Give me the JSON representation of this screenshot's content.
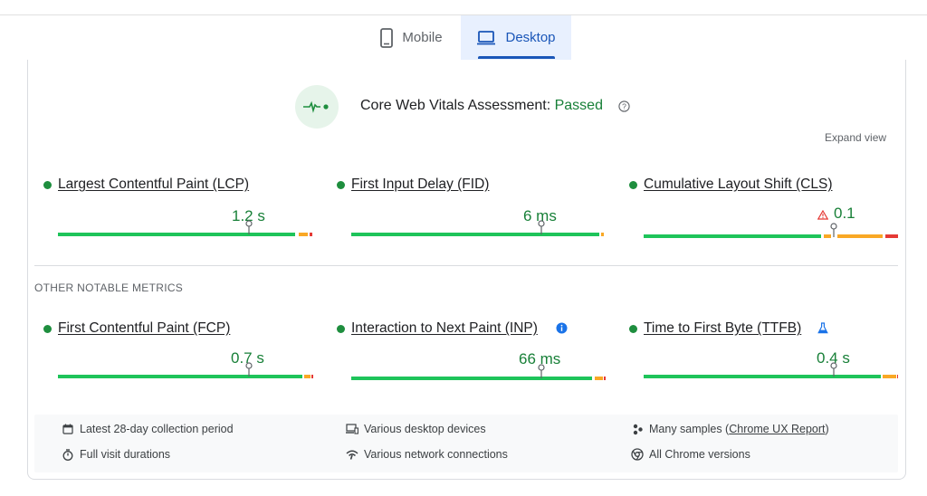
{
  "tabs": [
    {
      "label": "Mobile",
      "icon": "phone-icon"
    },
    {
      "label": "Desktop",
      "icon": "laptop-icon",
      "selected": true
    }
  ],
  "assessment": {
    "label": "Core Web Vitals Assessment: ",
    "status": "Passed",
    "icon": "pulse-icon"
  },
  "expand_view": "Expand view",
  "section_label": "OTHER NOTABLE METRICS",
  "metrics": {
    "lcp": {
      "name": "Largest Contentful Paint (LCP)",
      "value": "1.2 s"
    },
    "fid": {
      "name": "First Input Delay (FID)",
      "value": "6 ms"
    },
    "cls": {
      "name": "Cumulative Layout Shift (CLS)",
      "value": "0.1",
      "icon": "warning-triangle-icon"
    },
    "fcp": {
      "name": "First Contentful Paint (FCP)",
      "value": "0.7 s"
    },
    "inp": {
      "name": "Interaction to Next Paint (INP)",
      "value": "66 ms",
      "icon": "info-icon"
    },
    "ttfb": {
      "name": "Time to First Byte (TTFB)",
      "value": "0.4 s",
      "icon": "flask-icon"
    }
  },
  "info": {
    "period": "Latest 28-day collection period",
    "devices": "Various desktop devices",
    "samples_prefix": "Many samples (",
    "samples_link": "Chrome UX Report",
    "samples_suffix": ")",
    "durations": "Full visit durations",
    "network": "Various network connections",
    "versions": "All Chrome versions"
  },
  "colors": {
    "good": "#1ec45a",
    "needs_improvement": "#f9a825",
    "poor": "#e53935",
    "passed_text": "#188038",
    "accent": "#1a56b8"
  }
}
